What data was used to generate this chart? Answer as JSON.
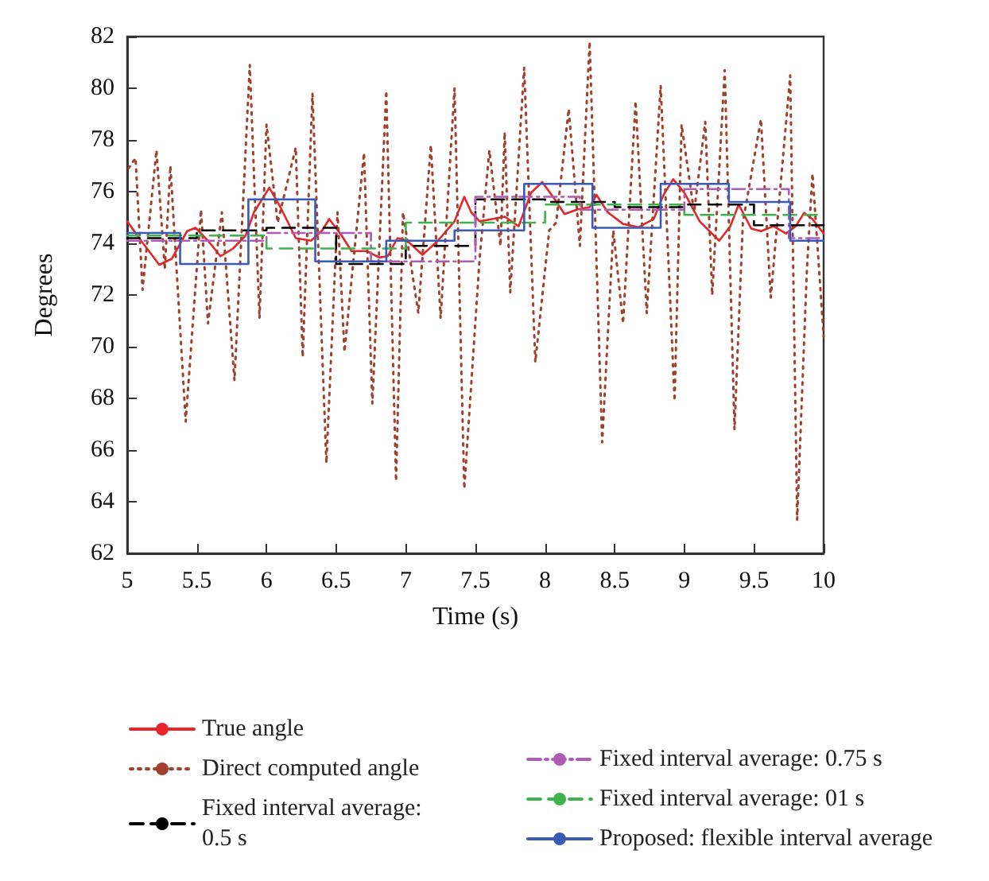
{
  "chart_data": {
    "type": "line",
    "xlabel": "Time (s)",
    "ylabel": "Degrees",
    "xlim": [
      5,
      10
    ],
    "ylim": [
      62,
      82
    ],
    "xticks": [
      5,
      5.5,
      6,
      6.5,
      7,
      7.5,
      8,
      8.5,
      9,
      9.5,
      10
    ],
    "yticks": [
      62,
      64,
      66,
      68,
      70,
      72,
      74,
      76,
      78,
      80,
      82
    ],
    "grid": false,
    "legend": "bottom",
    "marker": "none",
    "series": [
      {
        "name": "True angle",
        "color": "#e8252a",
        "line_style": "solid",
        "x": [
          5,
          5.1,
          5.23,
          5.32,
          5.43,
          5.49,
          5.58,
          5.67,
          5.76,
          5.85,
          5.91,
          6.02,
          6.1,
          6.21,
          6.32,
          6.4,
          6.45,
          6.54,
          6.61,
          6.72,
          6.81,
          6.87,
          6.94,
          7.01,
          7.12,
          7.23,
          7.35,
          7.42,
          7.47,
          7.53,
          7.62,
          7.71,
          7.81,
          7.9,
          7.98,
          8.06,
          8.14,
          8.23,
          8.32,
          8.37,
          8.45,
          8.56,
          8.67,
          8.78,
          8.85,
          8.92,
          9.0,
          9.11,
          9.25,
          9.33,
          9.39,
          9.48,
          9.55,
          9.64,
          9.73,
          9.8,
          9.86,
          9.92,
          10
        ],
        "values": [
          74.85,
          74.1,
          73.17,
          73.4,
          74.47,
          74.6,
          74.1,
          73.5,
          73.8,
          74.3,
          75.2,
          76.15,
          75.4,
          74.2,
          74.1,
          74.5,
          74.94,
          74.3,
          73.7,
          73.7,
          73.45,
          73.5,
          74.2,
          74.1,
          73.55,
          74.1,
          74.85,
          75.8,
          75.2,
          74.85,
          74.94,
          75.03,
          74.66,
          75.96,
          76.37,
          75.78,
          75.13,
          75.31,
          75.4,
          75.87,
          75.2,
          74.75,
          74.62,
          74.94,
          75.87,
          76.48,
          75.96,
          74.85,
          74.1,
          74.66,
          75.5,
          74.57,
          74.47,
          74.66,
          74.38,
          74.66,
          75.18,
          74.94,
          74.38
        ]
      },
      {
        "name": "Direct computed angle",
        "color": "#a0412d",
        "line_style": "dotted",
        "x": [
          5.01,
          5.06,
          5.11,
          5.21,
          5.27,
          5.31,
          5.42,
          5.53,
          5.58,
          5.68,
          5.77,
          5.88,
          5.95,
          6.0,
          6.08,
          6.21,
          6.26,
          6.33,
          6.43,
          6.51,
          6.56,
          6.7,
          6.76,
          6.86,
          6.93,
          6.98,
          7.09,
          7.18,
          7.25,
          7.35,
          7.42,
          7.53,
          7.6,
          7.68,
          7.71,
          7.75,
          7.85,
          7.93,
          8.03,
          8.08,
          8.17,
          8.25,
          8.32,
          8.41,
          8.49,
          8.56,
          8.65,
          8.73,
          8.83,
          8.93,
          8.98,
          9.07,
          9.15,
          9.2,
          9.29,
          9.36,
          9.42,
          9.55,
          9.62,
          9.76,
          9.81,
          9.88,
          9.92,
          10
        ],
        "values": [
          76.9,
          77.3,
          72.2,
          77.6,
          73,
          77,
          67.1,
          75.3,
          70.9,
          75.2,
          68.7,
          80.9,
          71.1,
          78.6,
          74.8,
          77.7,
          69.6,
          79.8,
          65.5,
          75.2,
          69.8,
          77.5,
          67.8,
          79.9,
          64.8,
          75.2,
          71.3,
          77.8,
          71.1,
          80,
          64.5,
          73.4,
          77.6,
          73.9,
          78.3,
          72.1,
          80.8,
          69.4,
          74.5,
          74.8,
          79.2,
          73.9,
          81.8,
          66.3,
          74.5,
          70.9,
          79.5,
          71.3,
          80.1,
          67.9,
          78.6,
          75.2,
          78.7,
          72,
          80.7,
          66.8,
          74.8,
          78.8,
          71.9,
          80.5,
          63.3,
          73,
          76.7,
          70.4
        ]
      },
      {
        "name": "Fixed interval average: 0.5 s",
        "type": "step",
        "color": "#000000",
        "line_style": "dashed",
        "x": [
          5,
          5.5,
          6,
          6.5,
          7,
          7.5,
          8,
          8.5,
          9,
          9.5,
          10
        ],
        "values": [
          74.2,
          74.5,
          74.6,
          73.2,
          73.9,
          75.7,
          75.6,
          75.4,
          75.5,
          74.7,
          74.7
        ]
      },
      {
        "name": "Fixed interval average: 0.75 s",
        "type": "step",
        "color": "#b05ab5",
        "line_style": "dashdot",
        "x": [
          5,
          6,
          6.75,
          7.5,
          8.25,
          9,
          9.75,
          10
        ],
        "values": [
          74.1,
          74.4,
          73.3,
          75.8,
          75.3,
          76.1,
          74.2,
          74.2
        ]
      },
      {
        "name": "Fixed interval average: 01 s",
        "type": "step",
        "color": "#3cb44b",
        "line_style": "dashed",
        "x": [
          5,
          6,
          7,
          8,
          9,
          10
        ],
        "values": [
          74.3,
          73.8,
          74.8,
          75.5,
          75.1,
          75.1
        ]
      },
      {
        "name": "Proposed: flexible interval average",
        "type": "step",
        "color": "#3a5bb5",
        "line_style": "solid",
        "x": [
          5,
          5.38,
          5.87,
          6.35,
          6.86,
          7.35,
          7.85,
          8.34,
          8.83,
          9.32,
          9.76,
          10
        ],
        "values": [
          74.4,
          73.2,
          75.7,
          73.3,
          74.1,
          74.5,
          76.3,
          74.6,
          76.3,
          75.6,
          74.1,
          74.1
        ]
      }
    ]
  }
}
